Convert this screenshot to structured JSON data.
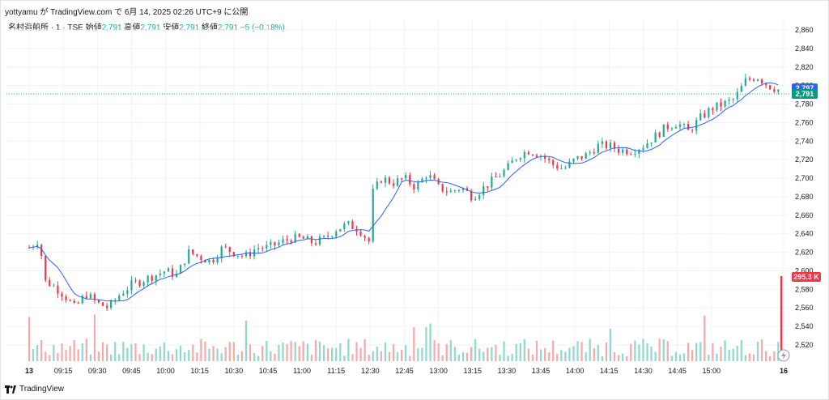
{
  "header": {
    "author_line": "yottyamu が TradingView.com で 6月 14, 2025 02:26 UTC+9 に公開"
  },
  "legend": {
    "symbol": "名村造船所 · 1 · TSE",
    "open_label": "始値",
    "open_value": "2,791",
    "high_label": "高値",
    "high_value": "2,791",
    "low_label": "安値",
    "low_value": "2,791",
    "close_label": "終値",
    "close_value": "2,791",
    "change": "−5 (−0.18%)"
  },
  "footer": {
    "brand": "TradingView"
  },
  "colors": {
    "up": "#22ab94",
    "down": "#f23645",
    "ma": "#2962ff",
    "up_vol": "#8fd8cb",
    "down_vol": "#f7a9a7"
  },
  "chart_data": {
    "type": "candlestick",
    "y_axis": {
      "ticks": [
        "2,860",
        "2,840",
        "2,820",
        "2,800",
        "2,780",
        "2,760",
        "2,740",
        "2,720",
        "2,700",
        "2,680",
        "2,660",
        "2,640",
        "2,620",
        "2,600",
        "2,580",
        "2,560",
        "2,540",
        "2,520"
      ],
      "range": [
        2510,
        2870
      ]
    },
    "x_axis": {
      "ticks": [
        "13",
        "09:15",
        "09:30",
        "09:45",
        "10:00",
        "10:15",
        "10:30",
        "10:45",
        "11:00",
        "11:15",
        "12:30",
        "12:45",
        "13:00",
        "13:15",
        "13:30",
        "13:45",
        "14:00",
        "14:15",
        "14:30",
        "14:45",
        "15:00",
        "16"
      ]
    },
    "price_path": {
      "times": [
        "09:00",
        "09:05",
        "09:06",
        "09:10",
        "09:15",
        "09:20",
        "09:25",
        "09:30",
        "09:35",
        "09:40",
        "09:45",
        "09:50",
        "09:55",
        "10:00",
        "10:05",
        "10:10",
        "10:15",
        "10:20",
        "10:25",
        "10:30",
        "10:35",
        "10:40",
        "10:45",
        "10:50",
        "10:55",
        "11:00",
        "11:05",
        "11:10",
        "11:15",
        "11:20",
        "11:25",
        "11:30",
        "12:30",
        "12:35",
        "12:40",
        "12:45",
        "12:50",
        "12:55",
        "13:00",
        "13:05",
        "13:10",
        "13:15",
        "13:20",
        "13:25",
        "13:30",
        "13:35",
        "13:40",
        "13:45",
        "13:50",
        "13:55",
        "14:00",
        "14:05",
        "14:10",
        "14:15",
        "14:20",
        "14:25",
        "14:30",
        "14:35",
        "14:40",
        "14:45",
        "14:50",
        "14:55",
        "15:00",
        "15:05",
        "15:10",
        "15:15",
        "15:20",
        "15:25",
        "15:30"
      ],
      "values": [
        2625,
        2635,
        2590,
        2585,
        2575,
        2560,
        2575,
        2565,
        2560,
        2575,
        2585,
        2590,
        2595,
        2600,
        2595,
        2620,
        2615,
        2610,
        2625,
        2620,
        2615,
        2625,
        2625,
        2630,
        2635,
        2635,
        2630,
        2635,
        2645,
        2650,
        2645,
        2630,
        2680,
        2700,
        2695,
        2700,
        2690,
        2705,
        2690,
        2685,
        2690,
        2680,
        2690,
        2700,
        2710,
        2725,
        2730,
        2725,
        2715,
        2710,
        2720,
        2725,
        2735,
        2735,
        2730,
        2730,
        2735,
        2745,
        2755,
        2760,
        2750,
        2765,
        2775,
        2780,
        2785,
        2805,
        2810,
        2800,
        2795
      ]
    },
    "current_price": "2,791",
    "ma_value": "2,797",
    "volume_label": "295.3 K"
  }
}
